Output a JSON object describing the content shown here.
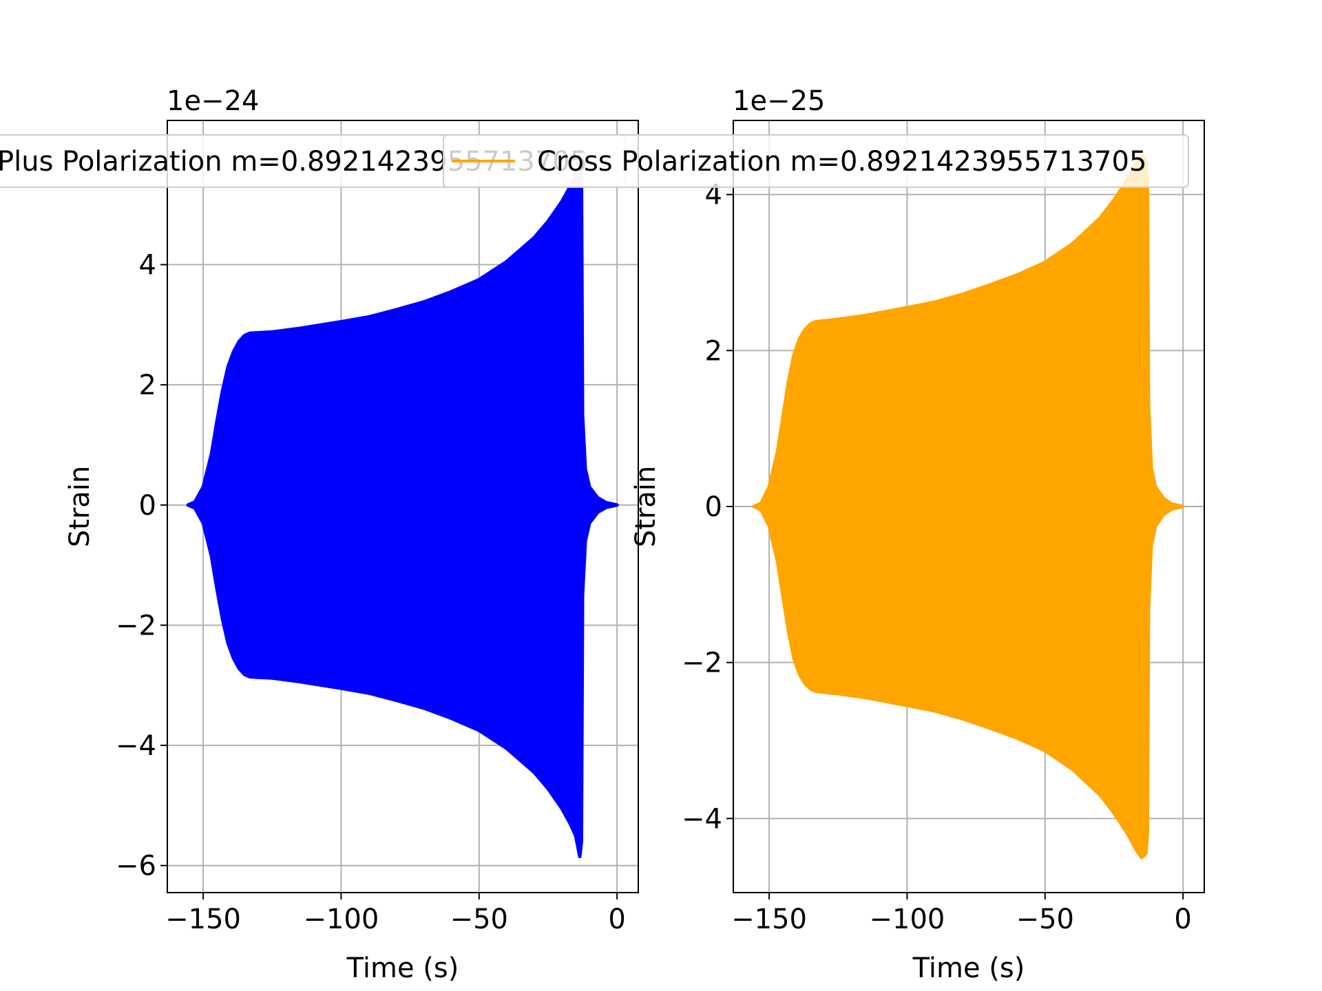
{
  "chart_data": [
    {
      "type": "line",
      "xlabel": "Time (s)",
      "ylabel": "Strain",
      "offset_text": "1e−24",
      "xlim": [
        -163,
        7.7
      ],
      "ylim": [
        -6.45,
        6.4
      ],
      "xticks": [
        -150,
        -100,
        -50,
        0
      ],
      "xtick_labels": [
        "−150",
        "−100",
        "−50",
        "0"
      ],
      "yticks": [
        -6,
        -4,
        -2,
        0,
        2,
        4
      ],
      "ytick_labels": [
        "−6",
        "−4",
        "−2",
        "0",
        "2",
        "4"
      ],
      "grid": true,
      "legend_position": "top",
      "color": "#0000ff",
      "series": [
        {
          "name": "Plus Polarization m=0.8921423955713705",
          "envelope": [
            [
              -155.5,
              0.0
            ],
            [
              -153,
              0.05
            ],
            [
              -150,
              0.3
            ],
            [
              -147,
              0.85
            ],
            [
              -145,
              1.4
            ],
            [
              -143,
              1.9
            ],
            [
              -141,
              2.3
            ],
            [
              -139,
              2.55
            ],
            [
              -137,
              2.72
            ],
            [
              -135,
              2.82
            ],
            [
              -133,
              2.86
            ],
            [
              -125,
              2.88
            ],
            [
              -115,
              2.94
            ],
            [
              -100,
              3.05
            ],
            [
              -90,
              3.13
            ],
            [
              -80,
              3.25
            ],
            [
              -70,
              3.38
            ],
            [
              -60,
              3.55
            ],
            [
              -50,
              3.75
            ],
            [
              -40,
              4.05
            ],
            [
              -30,
              4.45
            ],
            [
              -25,
              4.72
            ],
            [
              -20,
              5.05
            ],
            [
              -17,
              5.3
            ],
            [
              -15,
              5.5
            ],
            [
              -13.5,
              5.85
            ],
            [
              -12.9,
              5.6
            ],
            [
              -12.5,
              1.5
            ],
            [
              -11.5,
              0.6
            ],
            [
              -10,
              0.3
            ],
            [
              -7,
              0.12
            ],
            [
              -4,
              0.04
            ],
            [
              0,
              0.0
            ]
          ]
        }
      ]
    },
    {
      "type": "line",
      "xlabel": "Time (s)",
      "ylabel": "Strain",
      "offset_text": "1e−25",
      "xlim": [
        -163,
        7.7
      ],
      "ylim": [
        -4.95,
        4.95
      ],
      "xticks": [
        -150,
        -100,
        -50,
        0
      ],
      "xtick_labels": [
        "−150",
        "−100",
        "−50",
        "0"
      ],
      "yticks": [
        -4,
        -2,
        0,
        2,
        4
      ],
      "ytick_labels": [
        "−4",
        "−2",
        "0",
        "2",
        "4"
      ],
      "grid": true,
      "legend_position": "top",
      "color": "#ffa500",
      "series": [
        {
          "name": "Cross Polarization m=0.8921423955713705",
          "envelope": [
            [
              -155.5,
              0.0
            ],
            [
              -153,
              0.04
            ],
            [
              -150,
              0.25
            ],
            [
              -147,
              0.7
            ],
            [
              -145,
              1.15
            ],
            [
              -143,
              1.6
            ],
            [
              -141,
              1.95
            ],
            [
              -139,
              2.15
            ],
            [
              -137,
              2.27
            ],
            [
              -135,
              2.34
            ],
            [
              -133,
              2.37
            ],
            [
              -125,
              2.4
            ],
            [
              -115,
              2.45
            ],
            [
              -100,
              2.55
            ],
            [
              -90,
              2.62
            ],
            [
              -80,
              2.72
            ],
            [
              -70,
              2.84
            ],
            [
              -60,
              2.97
            ],
            [
              -50,
              3.13
            ],
            [
              -40,
              3.37
            ],
            [
              -30,
              3.7
            ],
            [
              -25,
              3.93
            ],
            [
              -20,
              4.2
            ],
            [
              -17,
              4.4
            ],
            [
              -15,
              4.5
            ],
            [
              -13.5,
              4.45
            ],
            [
              -12.9,
              4.2
            ],
            [
              -12.5,
              1.3
            ],
            [
              -11.5,
              0.5
            ],
            [
              -10,
              0.25
            ],
            [
              -7,
              0.1
            ],
            [
              -4,
              0.03
            ],
            [
              0,
              0.0
            ]
          ]
        }
      ]
    }
  ]
}
